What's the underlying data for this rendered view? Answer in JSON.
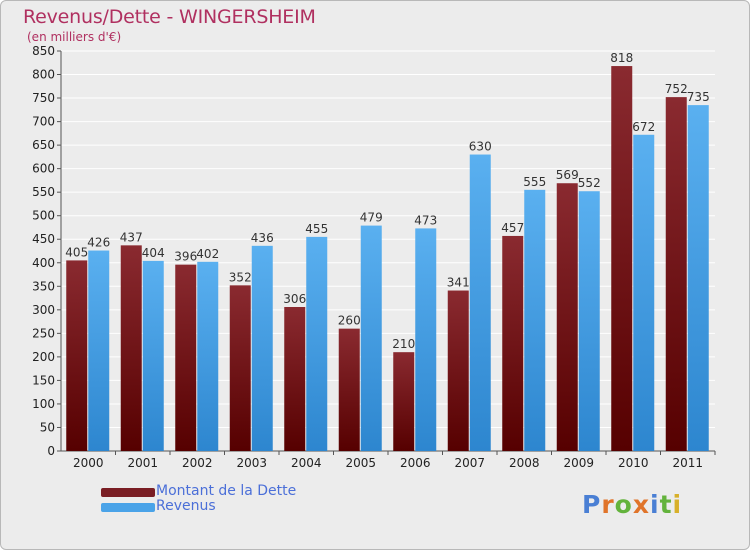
{
  "header": {
    "title": "Revenus/Dette - WINGERSHEIM",
    "subtitle": "(en milliers d'€)"
  },
  "chart_data": {
    "type": "bar",
    "title": "Revenus/Dette - WINGERSHEIM",
    "subtitle": "(en milliers d'€)",
    "categories": [
      "2000",
      "2001",
      "2002",
      "2003",
      "2004",
      "2005",
      "2006",
      "2007",
      "2008",
      "2009",
      "2010",
      "2011"
    ],
    "series": [
      {
        "name": "Montant de la Dette",
        "values": [
          405,
          437,
          396,
          352,
          306,
          260,
          210,
          341,
          457,
          569,
          818,
          752
        ],
        "color": "#7a1e24"
      },
      {
        "name": "Revenus",
        "values": [
          426,
          404,
          402,
          436,
          455,
          479,
          473,
          630,
          555,
          552,
          672,
          735
        ],
        "color": "#4aa3e8"
      }
    ],
    "ylim": [
      0,
      850
    ],
    "yticks": [
      0,
      50,
      100,
      150,
      200,
      250,
      300,
      350,
      400,
      450,
      500,
      550,
      600,
      650,
      700,
      750,
      800,
      850
    ],
    "grid": true,
    "legend_position": "bottom-left",
    "data_labels": true
  },
  "legend": {
    "items": [
      {
        "label": "Montant de la Dette",
        "color": "#7a1e24"
      },
      {
        "label": "Revenus",
        "color": "#4aa3e8"
      }
    ]
  },
  "branding": {
    "text": "Proxiti",
    "letter_colors": [
      "#4a7fd4",
      "#e0742a",
      "#63b33c",
      "#e0742a",
      "#4a7fd4",
      "#63b33c",
      "#d8b02a"
    ]
  },
  "colors": {
    "title": "#b03060",
    "background": "#ececec",
    "axis": "#555555",
    "grid": "#ffffff"
  }
}
